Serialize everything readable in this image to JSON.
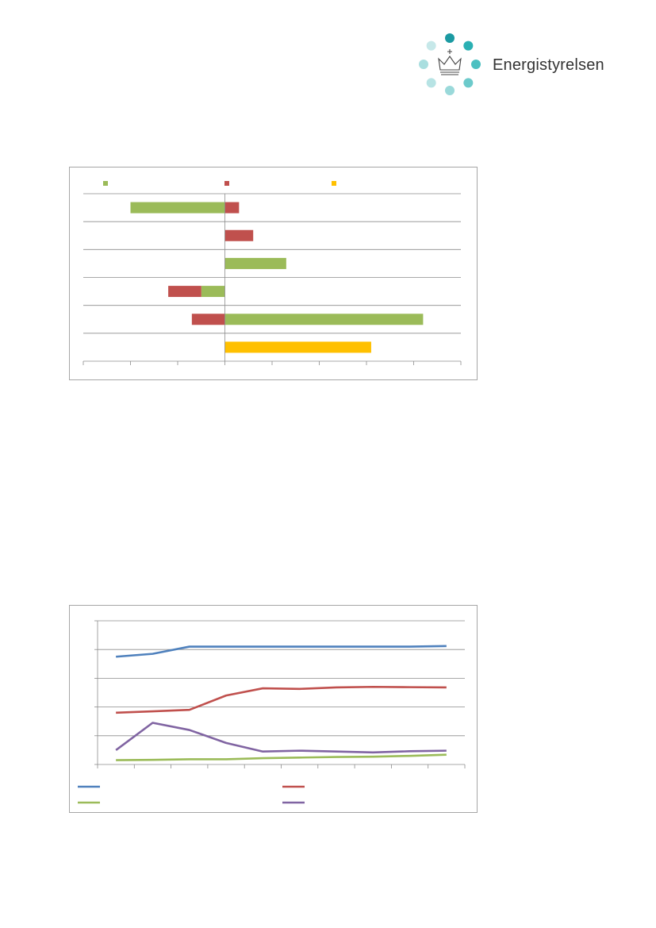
{
  "header": {
    "logo_text": "Energistyrelsen",
    "logo_icon": "crown-icon",
    "dot_colors": [
      "#1b9aa2",
      "#2ab0b3",
      "#4cc0c1",
      "#6ccacb",
      "#9ad9da",
      "#b7e3e4",
      "#a9dedf",
      "#c6e8e9"
    ]
  },
  "chart_data": [
    {
      "type": "bar",
      "orientation": "horizontal",
      "stacked": true,
      "title": "",
      "legend_position": "top",
      "categories": [
        "",
        "",
        "",
        "",
        "",
        ""
      ],
      "series": [
        {
          "color": "#9bbb59",
          "values": [
            -2.0,
            0,
            1.3,
            -0.5,
            4.2,
            0
          ]
        },
        {
          "color": "#c0504d",
          "values": [
            0.3,
            0.6,
            0,
            -0.7,
            -0.7,
            0
          ]
        },
        {
          "color": "#ffc000",
          "values": [
            0,
            0,
            0,
            0,
            0,
            3.1
          ]
        }
      ],
      "xlim": [
        -3,
        5
      ],
      "xticks": [
        -3,
        -2,
        -1,
        0,
        1,
        2,
        3,
        4,
        5
      ],
      "grid": "horizontal"
    },
    {
      "type": "line",
      "title": "",
      "legend_position": "bottom",
      "x": [
        1,
        2,
        3,
        4,
        5,
        6,
        7,
        8,
        9,
        10
      ],
      "series": [
        {
          "color": "#4f81bd",
          "values": [
            3.75,
            3.85,
            4.1,
            4.1,
            4.1,
            4.1,
            4.1,
            4.1,
            4.1,
            4.12
          ]
        },
        {
          "color": "#c0504d",
          "values": [
            1.8,
            1.85,
            1.9,
            2.4,
            2.65,
            2.63,
            2.68,
            2.7,
            2.69,
            2.68
          ]
        },
        {
          "color": "#9bbb59",
          "values": [
            0.15,
            0.16,
            0.18,
            0.18,
            0.22,
            0.24,
            0.26,
            0.27,
            0.3,
            0.34
          ]
        },
        {
          "color": "#8064a2",
          "values": [
            0.5,
            1.45,
            1.2,
            0.75,
            0.45,
            0.48,
            0.45,
            0.42,
            0.46,
            0.48
          ]
        }
      ],
      "ylim": [
        0,
        5
      ],
      "yticks": [
        0,
        1,
        2,
        3,
        4,
        5
      ],
      "xlim": [
        0.5,
        10.5
      ],
      "grid": "horizontal"
    }
  ]
}
